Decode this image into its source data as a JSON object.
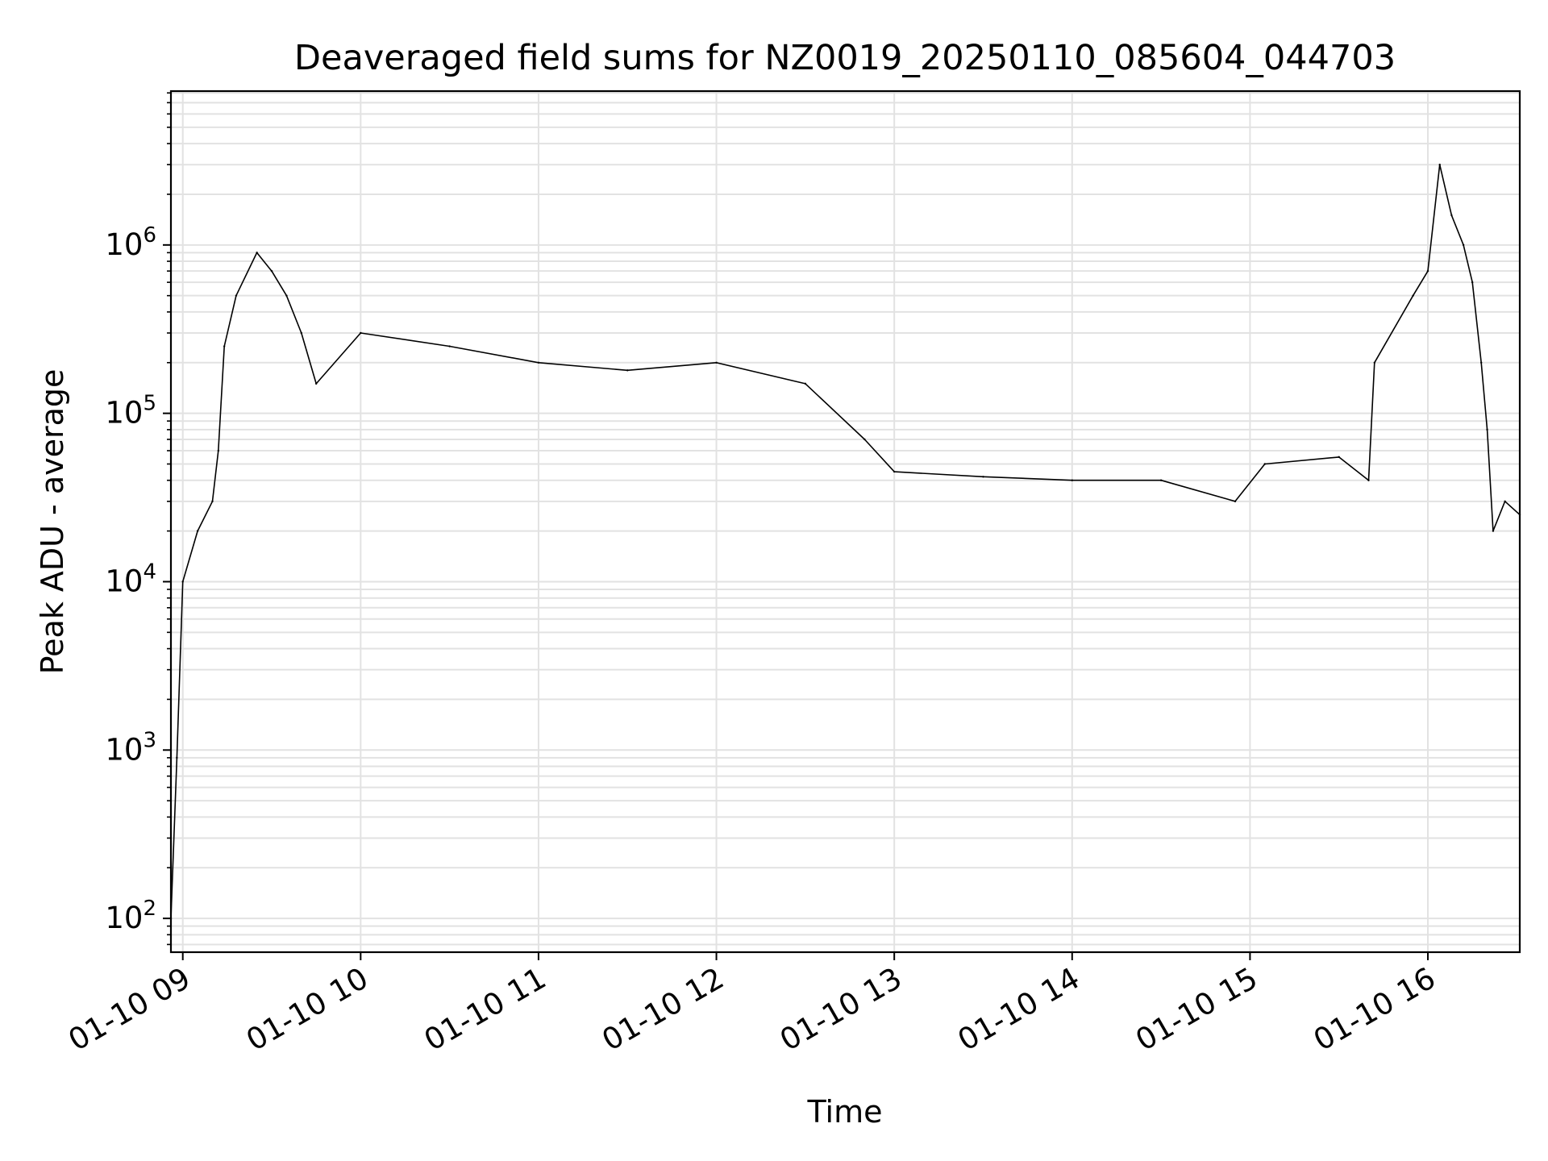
{
  "chart_data": {
    "type": "line",
    "title": "Deaveraged field sums for NZ0019_20250110_085604_044703",
    "xlabel": "Time",
    "ylabel": "Peak ADU - average",
    "yscale": "log",
    "ylim": [
      63,
      8200000
    ],
    "xlim": [
      "2025-01-10 08:56",
      "2025-01-10 16:31"
    ],
    "grid": true,
    "line_color": "#000000",
    "grid_color": "#e2e2e2",
    "x_ticks": [
      "01-10 09",
      "01-10 10",
      "01-10 11",
      "01-10 12",
      "01-10 13",
      "01-10 14",
      "01-10 15",
      "01-10 16"
    ],
    "y_ticks": [
      {
        "base": "10",
        "exp": "2"
      },
      {
        "base": "10",
        "exp": "3"
      },
      {
        "base": "10",
        "exp": "4"
      },
      {
        "base": "10",
        "exp": "5"
      },
      {
        "base": "10",
        "exp": "6"
      }
    ],
    "series": [
      {
        "points": [
          {
            "x": "2025-01-10 08:56",
            "y": 100
          },
          {
            "x": "2025-01-10 08:58",
            "y": 900
          },
          {
            "x": "2025-01-10 09:00",
            "y": 10000
          },
          {
            "x": "2025-01-10 09:05",
            "y": 20000
          },
          {
            "x": "2025-01-10 09:10",
            "y": 30000
          },
          {
            "x": "2025-01-10 09:12",
            "y": 60000
          },
          {
            "x": "2025-01-10 09:14",
            "y": 250000
          },
          {
            "x": "2025-01-10 09:18",
            "y": 500000
          },
          {
            "x": "2025-01-10 09:25",
            "y": 900000
          },
          {
            "x": "2025-01-10 09:30",
            "y": 700000
          },
          {
            "x": "2025-01-10 09:35",
            "y": 500000
          },
          {
            "x": "2025-01-10 09:40",
            "y": 300000
          },
          {
            "x": "2025-01-10 09:45",
            "y": 150000
          },
          {
            "x": "2025-01-10 10:00",
            "y": 300000
          },
          {
            "x": "2025-01-10 10:30",
            "y": 250000
          },
          {
            "x": "2025-01-10 11:00",
            "y": 200000
          },
          {
            "x": "2025-01-10 11:30",
            "y": 180000
          },
          {
            "x": "2025-01-10 12:00",
            "y": 200000
          },
          {
            "x": "2025-01-10 12:30",
            "y": 150000
          },
          {
            "x": "2025-01-10 12:50",
            "y": 70000
          },
          {
            "x": "2025-01-10 13:00",
            "y": 45000
          },
          {
            "x": "2025-01-10 13:30",
            "y": 42000
          },
          {
            "x": "2025-01-10 14:00",
            "y": 40000
          },
          {
            "x": "2025-01-10 14:30",
            "y": 40000
          },
          {
            "x": "2025-01-10 14:55",
            "y": 30000
          },
          {
            "x": "2025-01-10 15:05",
            "y": 50000
          },
          {
            "x": "2025-01-10 15:30",
            "y": 55000
          },
          {
            "x": "2025-01-10 15:40",
            "y": 40000
          },
          {
            "x": "2025-01-10 15:42",
            "y": 200000
          },
          {
            "x": "2025-01-10 15:55",
            "y": 500000
          },
          {
            "x": "2025-01-10 16:00",
            "y": 700000
          },
          {
            "x": "2025-01-10 16:04",
            "y": 3000000
          },
          {
            "x": "2025-01-10 16:08",
            "y": 1500000
          },
          {
            "x": "2025-01-10 16:12",
            "y": 1000000
          },
          {
            "x": "2025-01-10 16:15",
            "y": 600000
          },
          {
            "x": "2025-01-10 16:18",
            "y": 200000
          },
          {
            "x": "2025-01-10 16:20",
            "y": 80000
          },
          {
            "x": "2025-01-10 16:22",
            "y": 20000
          },
          {
            "x": "2025-01-10 16:26",
            "y": 30000
          },
          {
            "x": "2025-01-10 16:31",
            "y": 25000
          }
        ]
      }
    ]
  }
}
